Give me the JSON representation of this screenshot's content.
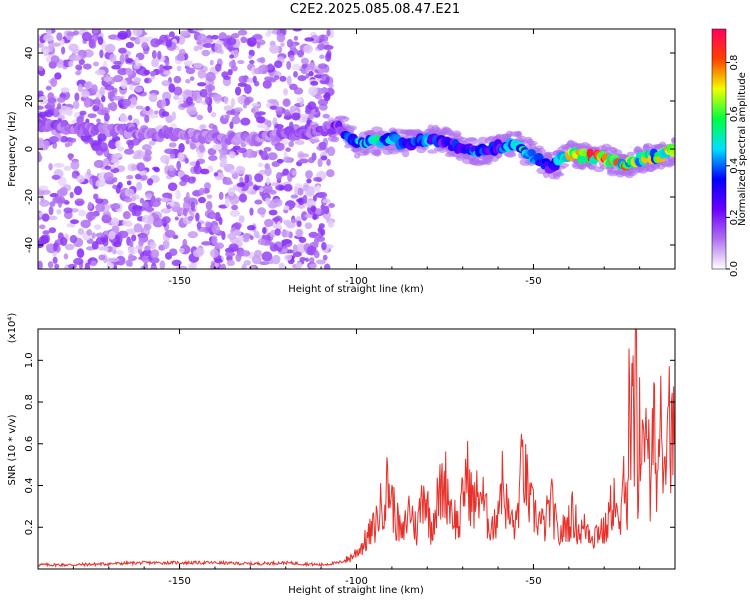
{
  "title": "C2E2.2025.085.08.47.E21",
  "chart_data": [
    {
      "type": "heatmap",
      "title": "C2E2.2025.085.08.47.E21",
      "xlabel": "Height of straight line (km)",
      "ylabel": "Frequency (Hz)",
      "xlim": [
        -190,
        -10
      ],
      "ylim": [
        -50,
        50
      ],
      "xticks": [
        -150,
        -100,
        -50
      ],
      "yticks": [
        -40,
        -20,
        0,
        20,
        40
      ],
      "colorbar": {
        "label": "Normalized spectral amplitude",
        "range": [
          0,
          0.93
        ],
        "ticks": [
          0.0,
          0.2,
          0.4,
          0.6,
          0.8
        ],
        "colors": [
          "#ffffff",
          "#b070f0",
          "#6a00ff",
          "#0000ff",
          "#00e0ff",
          "#00ff40",
          "#f0ff00",
          "#ff4000",
          "#ff0060"
        ]
      },
      "noise_region": {
        "x": [
          -190,
          -107
        ],
        "y": [
          -50,
          50
        ],
        "amplitude": 0.15
      },
      "signal_ridge": {
        "x": [
          -190,
          -180,
          -170,
          -160,
          -150,
          -140,
          -130,
          -120,
          -110,
          -105,
          -100,
          -95,
          -90,
          -85,
          -80,
          -75,
          -70,
          -65,
          -60,
          -55,
          -50,
          -45,
          -40,
          -35,
          -30,
          -25,
          -20,
          -15,
          -10
        ],
        "freq": [
          10,
          9,
          8,
          7,
          6,
          5,
          4,
          6,
          8,
          9,
          2,
          3,
          4,
          2,
          4,
          3,
          0,
          -1,
          1,
          2,
          -3,
          -8,
          -2,
          -3,
          -4,
          -7,
          -4,
          -3,
          -1
        ],
        "amplitude": [
          0.15,
          0.14,
          0.13,
          0.13,
          0.12,
          0.12,
          0.12,
          0.14,
          0.16,
          0.2,
          0.45,
          0.55,
          0.5,
          0.35,
          0.4,
          0.3,
          0.35,
          0.4,
          0.3,
          0.55,
          0.45,
          0.3,
          0.75,
          0.8,
          0.85,
          0.7,
          0.65,
          0.6,
          0.7
        ]
      }
    },
    {
      "type": "line",
      "xlabel": "Height of straight line (km)",
      "ylabel": "SNR (10 * v/v)",
      "y_multiplier": "(x10⁴)",
      "xlim": [
        -190,
        -10
      ],
      "ylim": [
        0,
        1.15
      ],
      "xticks": [
        -150,
        -100,
        -50
      ],
      "yticks": [
        0.2,
        0.4,
        0.6,
        0.8,
        1.0
      ],
      "line_color": "#e8302a",
      "series": [
        {
          "x": [
            -190,
            -180,
            -170,
            -160,
            -150,
            -140,
            -130,
            -120,
            -110,
            -105,
            -102,
            -100,
            -98,
            -95,
            -93,
            -91,
            -89,
            -87,
            -85,
            -83,
            -81,
            -79,
            -77,
            -75,
            -73,
            -71,
            -69,
            -67,
            -65,
            -63,
            -61,
            -59,
            -57,
            -55,
            -53,
            -51,
            -49,
            -47,
            -45,
            -43,
            -41,
            -39,
            -37,
            -35,
            -33,
            -31,
            -30,
            -29,
            -28,
            -27,
            -26,
            -25,
            -24.5,
            -24,
            -23.5,
            -23,
            -22.5,
            -22,
            -21.5,
            -21,
            -20.5,
            -20,
            -19,
            -18,
            -17,
            -16,
            -15,
            -14,
            -13,
            -12,
            -11,
            -10
          ],
          "y": [
            0.02,
            0.02,
            0.025,
            0.03,
            0.03,
            0.03,
            0.025,
            0.03,
            0.02,
            0.03,
            0.05,
            0.08,
            0.12,
            0.2,
            0.3,
            0.41,
            0.25,
            0.15,
            0.3,
            0.18,
            0.4,
            0.2,
            0.33,
            0.42,
            0.28,
            0.2,
            0.47,
            0.3,
            0.38,
            0.24,
            0.2,
            0.43,
            0.25,
            0.2,
            0.52,
            0.3,
            0.25,
            0.2,
            0.32,
            0.15,
            0.2,
            0.26,
            0.18,
            0.2,
            0.16,
            0.2,
            0.17,
            0.22,
            0.3,
            0.35,
            0.18,
            0.25,
            0.45,
            0.6,
            0.2,
            0.8,
            0.35,
            1.05,
            0.4,
            1.12,
            0.3,
            0.75,
            0.5,
            0.9,
            0.3,
            0.7,
            0.42,
            0.8,
            0.55,
            0.88,
            0.6,
            0.65
          ]
        }
      ]
    }
  ]
}
